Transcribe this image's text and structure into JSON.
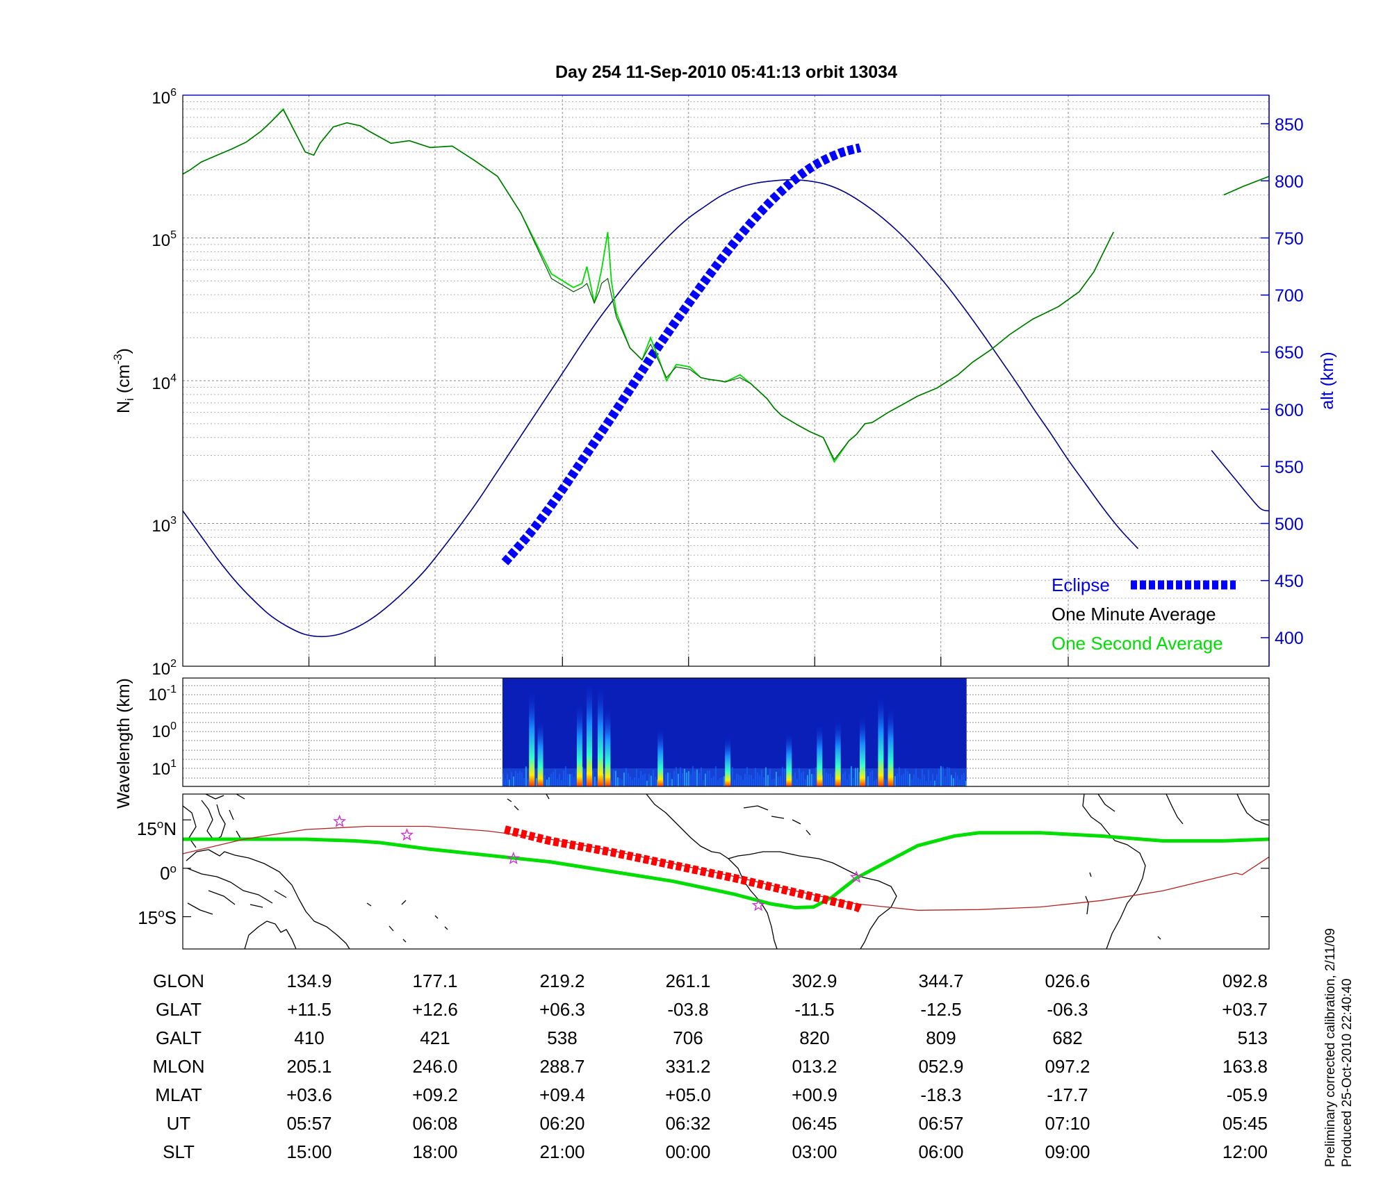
{
  "title": "Day 254  11-Sep-2010 05:41:13   orbit 13034",
  "footer": {
    "line1": "Preliminary corrected calibration, 2/11/09",
    "line2": "Produced 25-Oct-2010 22:40:40"
  },
  "colors": {
    "ni_one_second": "#00dd00",
    "ni_one_minute": "#0a5a0a",
    "altitude": "#00008b",
    "eclipse": "#0000ff",
    "alt_axis": "#0000cd",
    "ground_track": "#b22222",
    "ground_track_eclipse": "#ff0000",
    "magnetic_equator": "#00dd00",
    "star": "#cc33cc"
  },
  "chart_data": [
    {
      "type": "line",
      "panel": "density-altitude",
      "ylabel_left_base": "N",
      "ylabel_left_sub": "i",
      "ylabel_left_units": " (cm",
      "ylabel_left_exp": "-3",
      "ylabel_left_close": ")",
      "ylabel_right": "alt (km)",
      "yscale_left": "log",
      "ylim_left": [
        100,
        1000000
      ],
      "left_ticks": [
        {
          "base": "10",
          "exp": "2",
          "value": 100
        },
        {
          "base": "10",
          "exp": "3",
          "value": 1000
        },
        {
          "base": "10",
          "exp": "4",
          "value": 10000
        },
        {
          "base": "10",
          "exp": "5",
          "value": 100000
        },
        {
          "base": "10",
          "exp": "6",
          "value": 1000000
        }
      ],
      "ylim_right": [
        375,
        875
      ],
      "right_ticks": [
        "400",
        "450",
        "500",
        "550",
        "600",
        "650",
        "700",
        "750",
        "800",
        "850"
      ],
      "grid": true,
      "legend_placement": "bottom-right",
      "legend": [
        {
          "label": "Eclipse",
          "color": "#0000ff"
        },
        {
          "label": "One Minute Average",
          "color": "#000000"
        },
        {
          "label": "One Second Average",
          "color": "#00dd00"
        }
      ],
      "series": [
        {
          "name": "One Second Average",
          "axis": "left",
          "x": [
            0,
            0.6,
            1.5,
            2.8,
            4.0,
            5.2,
            6.4,
            7.2,
            8.2,
            10.0,
            10.7,
            11.2,
            12.3,
            13.4,
            14.5,
            15.2,
            17.0,
            18.5,
            20.2,
            22.0,
            23.8,
            25.7,
            27.6,
            30.1,
            31.9,
            32.6,
            33.0,
            33.6,
            34.0,
            34.2,
            34.7,
            35.0,
            35.4,
            36.5,
            37.5,
            38.2,
            38.9,
            39.5,
            40.3,
            41.4,
            42.3,
            43.0,
            43.8,
            44.3,
            45.5,
            46.4,
            47.7,
            48.3,
            48.9,
            50.2,
            51.2,
            52.3,
            53.2,
            54.4,
            55.0,
            55.7,
            56.3,
            57.6,
            58.9,
            60.0,
            61.6,
            63.3,
            64.5,
            66.0,
            67.5,
            69.4,
            71.5,
            73.2,
            74.4,
            75.2,
            76.0,
            76.6,
            77.8,
            79.1,
            80.4,
            81.7,
            83.4,
            85.0,
            86.6,
            88.7
          ],
          "y": [
            280000,
            300000,
            340000,
            380000,
            420000,
            470000,
            560000,
            650000,
            800000,
            400000,
            380000,
            460000,
            600000,
            640000,
            610000,
            560000,
            460000,
            480000,
            430000,
            440000,
            350000,
            270000,
            150000,
            56000,
            45000,
            48000,
            63000,
            35000,
            50000,
            60000,
            110000,
            50000,
            30000,
            17000,
            14000,
            20000,
            14000,
            10000,
            13000,
            12500,
            10500,
            10200,
            10000,
            9800,
            11000,
            9500,
            7500,
            6400,
            5700,
            4900,
            4400,
            4000,
            2700,
            3800,
            4200,
            5000,
            5100,
            6000,
            6900,
            7800,
            8900,
            11000,
            13500,
            16500,
            21000,
            27000,
            33000,
            42000,
            58000,
            80000,
            110000,
            null,
            null,
            null,
            null,
            null,
            null,
            200000,
            230000,
            270000
          ]
        },
        {
          "name": "One Minute Average",
          "axis": "left",
          "x": [
            0,
            0.6,
            1.5,
            2.8,
            4.0,
            5.2,
            6.4,
            7.2,
            8.2,
            10.0,
            10.7,
            11.2,
            12.3,
            13.4,
            14.5,
            15.2,
            17.0,
            18.5,
            20.2,
            22.0,
            23.8,
            25.7,
            27.6,
            30.1,
            31.9,
            32.6,
            33.0,
            33.6,
            34.0,
            34.2,
            34.7,
            35.0,
            35.4,
            36.5,
            37.5,
            38.2,
            38.9,
            39.5,
            40.3,
            41.4,
            42.3,
            43.0,
            43.8,
            44.3,
            45.5,
            46.4,
            47.7,
            48.3,
            48.9,
            50.2,
            51.2,
            52.3,
            53.2,
            54.4,
            55.0,
            55.7,
            56.3,
            57.6,
            58.9,
            60.0,
            61.6,
            63.3,
            64.5,
            66.0,
            67.5,
            69.4,
            71.5,
            73.2,
            74.4,
            75.2,
            76.0,
            76.6,
            77.8,
            79.1,
            80.4,
            81.7,
            83.4,
            85.0,
            86.6,
            88.7
          ],
          "y": [
            280000,
            300000,
            340000,
            380000,
            420000,
            470000,
            560000,
            650000,
            790000,
            400000,
            380000,
            460000,
            600000,
            640000,
            610000,
            560000,
            460000,
            480000,
            430000,
            440000,
            350000,
            270000,
            150000,
            52000,
            42000,
            45000,
            48000,
            35000,
            42000,
            48000,
            52000,
            40000,
            28000,
            17000,
            14000,
            18000,
            13500,
            10500,
            12500,
            12000,
            10500,
            10200,
            10000,
            9800,
            10500,
            9500,
            7500,
            6400,
            5700,
            4900,
            4400,
            4000,
            2800,
            3800,
            4200,
            5000,
            5100,
            6000,
            6900,
            7800,
            8900,
            11000,
            13500,
            16500,
            21000,
            27000,
            33000,
            42000,
            58000,
            80000,
            110000,
            null,
            null,
            null,
            null,
            null,
            null,
            200000,
            230000,
            270000
          ]
        },
        {
          "name": "alt (km)",
          "axis": "right",
          "x": [
            0,
            1.42,
            2.84,
            4.26,
            5.67,
            7.09,
            8.51,
            9.93,
            11.35,
            12.77,
            14.19,
            15.6,
            17.02,
            18.44,
            19.86,
            21.28,
            22.7,
            24.11,
            25.53,
            26.95,
            28.37,
            29.79,
            31.21,
            32.62,
            34.04,
            35.46,
            36.88,
            38.3,
            39.72,
            41.13,
            42.55,
            43.97,
            45.39,
            46.81,
            48.23,
            49.65,
            51.06,
            52.48,
            53.9,
            55.32,
            56.74,
            58.16,
            59.57,
            60.99,
            62.41,
            63.83,
            65.25,
            66.67,
            68.09,
            69.5,
            70.92,
            72.34,
            73.76,
            75.18,
            76.6,
            78.0,
            79.0,
            80.0,
            81.0,
            82.0,
            83.0,
            84.0,
            85.0,
            86.0,
            87.0,
            88.0,
            88.7
          ],
          "y": [
            511,
            490,
            469,
            450,
            434,
            420,
            410,
            403,
            401,
            403,
            409,
            418,
            430,
            444,
            460,
            479,
            499,
            520,
            543,
            566,
            589,
            612,
            635,
            658,
            680,
            700,
            719,
            736,
            752,
            766,
            777,
            787,
            794,
            798,
            800,
            801,
            800,
            797,
            791,
            782,
            771,
            758,
            743,
            726,
            708,
            688,
            667,
            645,
            623,
            600,
            578,
            555,
            534,
            513,
            494,
            478,
            null,
            null,
            null,
            null,
            null,
            564,
            551,
            538,
            525,
            513,
            511
          ]
        },
        {
          "name": "Eclipse",
          "axis": "right",
          "x": [
            26.3,
            28.4,
            30.5,
            32.6,
            34.7,
            36.8,
            38.9,
            41.0,
            43.1,
            45.2,
            47.3,
            49.4,
            51.5,
            53.6,
            55.3
          ],
          "y": [
            466,
            492,
            522,
            555,
            588,
            622,
            656,
            688,
            719,
            748,
            774,
            796,
            813,
            824,
            829
          ]
        }
      ]
    },
    {
      "type": "heatmap",
      "panel": "spectrogram",
      "ylabel": "Wavelength (km)",
      "yscale": "log",
      "y_ticks": [
        {
          "base": "10",
          "exp": "-1",
          "value": 0.1
        },
        {
          "base": "10",
          "exp": "0",
          "value": 1
        },
        {
          "base": "10",
          "exp": "1",
          "value": 10
        }
      ],
      "x_range": [
        26.1,
        64.0
      ],
      "bright_columns": [
        {
          "x": 28.5,
          "intensity": 0.9
        },
        {
          "x": 29.2,
          "intensity": 0.55
        },
        {
          "x": 32.4,
          "intensity": 0.75
        },
        {
          "x": 33.2,
          "intensity": 1.0
        },
        {
          "x": 34.1,
          "intensity": 0.95
        },
        {
          "x": 34.7,
          "intensity": 0.7
        },
        {
          "x": 39.0,
          "intensity": 0.45
        },
        {
          "x": 44.5,
          "intensity": 0.35
        },
        {
          "x": 49.5,
          "intensity": 0.4
        },
        {
          "x": 52.0,
          "intensity": 0.5
        },
        {
          "x": 53.5,
          "intensity": 0.55
        },
        {
          "x": 55.5,
          "intensity": 0.6
        },
        {
          "x": 57.0,
          "intensity": 0.85
        },
        {
          "x": 57.8,
          "intensity": 0.7
        }
      ]
    },
    {
      "type": "line",
      "panel": "ground-track-map",
      "y_ticks": [
        {
          "deg": "15",
          "hem": "N",
          "value": 15
        },
        {
          "deg": "0",
          "hem": "",
          "value": 0
        },
        {
          "deg": "15",
          "hem": "S",
          "value": -15
        }
      ],
      "ylim": [
        -25,
        23
      ],
      "series": [
        {
          "name": "magnetic equator",
          "x": [
            0,
            5,
            10,
            14,
            16,
            20,
            25,
            30,
            35,
            40,
            45,
            48,
            50,
            51.5,
            53,
            55,
            60,
            63,
            65,
            70,
            75,
            80,
            85,
            88.7
          ],
          "y": [
            9,
            9,
            9,
            8.5,
            8,
            6,
            4,
            2,
            -1,
            -4,
            -8,
            -11,
            -12.2,
            -12,
            -9,
            -3,
            7,
            10,
            11,
            11,
            10,
            8.5,
            8.5,
            9
          ]
        },
        {
          "name": "ground track",
          "x": [
            0,
            5,
            10,
            15,
            20,
            25,
            30,
            35,
            40,
            45,
            50,
            55,
            60,
            65,
            70,
            75,
            80,
            86,
            86.5,
            88.7
          ],
          "y": [
            4.5,
            9,
            12,
            13,
            13,
            11.5,
            9,
            5.5,
            1.5,
            -2.5,
            -7,
            -11,
            -13,
            -12.8,
            -12,
            -10,
            -7,
            -1.5,
            -2,
            3.5
          ]
        },
        {
          "name": "ground track eclipse",
          "x": [
            26.3,
            30,
            35,
            40,
            45,
            50,
            55,
            55.3
          ],
          "y": [
            12,
            8.5,
            5,
            1,
            -3,
            -7.5,
            -12,
            -12.5
          ]
        }
      ],
      "stars": [
        {
          "x": 12.8,
          "y": 14.5
        },
        {
          "x": 18.3,
          "y": 10.3
        },
        {
          "x": 27.0,
          "y": 3.0
        },
        {
          "x": 47.0,
          "y": -11.5
        },
        {
          "x": 55.0,
          "y": -2.8
        }
      ]
    }
  ],
  "ephemeris": {
    "rows": [
      {
        "label": "GLON",
        "values": [
          "134.9",
          "177.1",
          "219.2",
          "261.1",
          "302.9",
          "344.7",
          "026.6",
          "092.8"
        ]
      },
      {
        "label": "GLAT",
        "values": [
          "+11.5",
          "+12.6",
          "+06.3",
          "-03.8",
          "-11.5",
          "-12.5",
          "-06.3",
          "+03.7"
        ]
      },
      {
        "label": "GALT",
        "values": [
          "410",
          "421",
          "538",
          "706",
          "820",
          "809",
          "682",
          "513"
        ]
      },
      {
        "label": "MLON",
        "values": [
          "205.1",
          "246.0",
          "288.7",
          "331.2",
          "013.2",
          "052.9",
          "097.2",
          "163.8"
        ]
      },
      {
        "label": "MLAT",
        "values": [
          "+03.6",
          "+09.2",
          "+09.4",
          "+05.0",
          "+00.9",
          "-18.3",
          "-17.7",
          "-05.9"
        ]
      },
      {
        "label": "UT",
        "values": [
          "05:57",
          "06:08",
          "06:20",
          "06:32",
          "06:45",
          "06:57",
          "07:10",
          "05:45"
        ]
      },
      {
        "label": "SLT",
        "values": [
          "15:00",
          "18:00",
          "21:00",
          "00:00",
          "03:00",
          "06:00",
          "09:00",
          "12:00"
        ]
      }
    ]
  }
}
